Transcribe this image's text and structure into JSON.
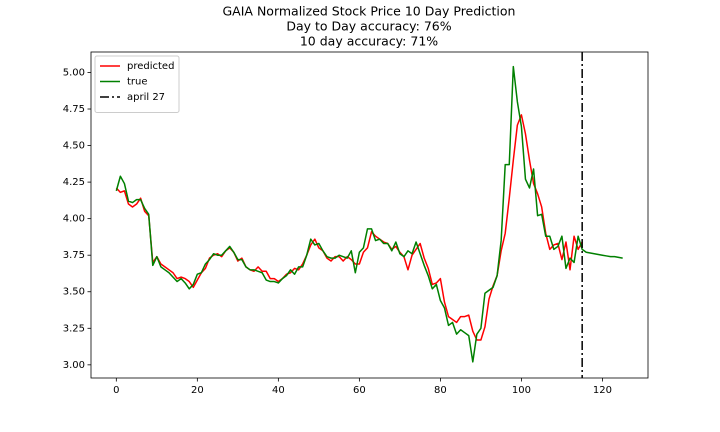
{
  "chart_data": {
    "type": "line",
    "title": [
      "GAIA Normalized Stock Price 10 Day Prediction",
      "Day to Day accuracy: 76%",
      "10 day accuracy: 71%"
    ],
    "x": [
      0,
      1,
      2,
      3,
      4,
      5,
      6,
      7,
      8,
      9,
      10,
      11,
      12,
      13,
      14,
      15,
      16,
      17,
      18,
      19,
      20,
      21,
      22,
      23,
      24,
      25,
      26,
      27,
      28,
      29,
      30,
      31,
      32,
      33,
      34,
      35,
      36,
      37,
      38,
      39,
      40,
      41,
      42,
      43,
      44,
      45,
      46,
      47,
      48,
      49,
      50,
      51,
      52,
      53,
      54,
      55,
      56,
      57,
      58,
      59,
      60,
      61,
      62,
      63,
      64,
      65,
      66,
      67,
      68,
      69,
      70,
      71,
      72,
      73,
      74,
      75,
      76,
      77,
      78,
      79,
      80,
      81,
      82,
      83,
      84,
      85,
      86,
      87,
      88,
      89,
      90,
      91,
      92,
      93,
      94,
      95,
      96,
      97,
      98,
      99,
      100,
      101,
      102,
      103,
      104,
      105,
      106,
      107,
      108,
      109,
      110,
      111,
      112,
      113,
      114,
      115,
      116,
      117,
      118,
      119,
      120,
      121,
      122,
      123,
      124,
      125
    ],
    "series": [
      {
        "name": "predicted",
        "color": "#ff0000",
        "values": [
          4.21,
          4.18,
          4.19,
          4.1,
          4.08,
          4.1,
          4.14,
          4.05,
          4.02,
          3.7,
          3.74,
          3.69,
          3.67,
          3.65,
          3.63,
          3.59,
          3.6,
          3.59,
          3.57,
          3.53,
          3.58,
          3.63,
          3.66,
          3.73,
          3.75,
          3.76,
          3.74,
          3.78,
          3.8,
          3.77,
          3.71,
          3.73,
          3.67,
          3.65,
          3.64,
          3.67,
          3.64,
          3.64,
          3.59,
          3.59,
          3.57,
          3.59,
          3.62,
          3.63,
          3.66,
          3.65,
          3.69,
          3.75,
          3.82,
          3.86,
          3.8,
          3.78,
          3.73,
          3.71,
          3.74,
          3.74,
          3.71,
          3.74,
          3.72,
          3.69,
          3.69,
          3.77,
          3.8,
          3.91,
          3.88,
          3.86,
          3.84,
          3.83,
          3.79,
          3.81,
          3.77,
          3.74,
          3.65,
          3.75,
          3.79,
          3.83,
          3.73,
          3.66,
          3.55,
          3.56,
          3.59,
          3.43,
          3.33,
          3.31,
          3.29,
          3.33,
          3.33,
          3.34,
          3.23,
          3.17,
          3.17,
          3.26,
          3.45,
          3.54,
          3.61,
          3.78,
          3.9,
          4.14,
          4.4,
          4.64,
          4.71,
          4.58,
          4.4,
          4.24,
          4.17,
          4.08,
          3.9,
          3.79,
          3.82,
          3.83,
          3.72,
          3.84,
          3.65,
          3.88,
          3.79,
          3.84,
          null,
          null,
          null,
          null,
          null,
          null,
          null,
          null,
          null,
          null
        ]
      },
      {
        "name": "true",
        "color": "#008000",
        "values": [
          4.19,
          4.29,
          4.24,
          4.12,
          4.11,
          4.13,
          4.13,
          4.07,
          4.03,
          3.68,
          3.74,
          3.67,
          3.65,
          3.63,
          3.6,
          3.57,
          3.59,
          3.56,
          3.52,
          3.55,
          3.62,
          3.63,
          3.69,
          3.72,
          3.76,
          3.75,
          3.75,
          3.78,
          3.81,
          3.77,
          3.72,
          3.72,
          3.67,
          3.65,
          3.65,
          3.64,
          3.63,
          3.58,
          3.57,
          3.57,
          3.56,
          3.59,
          3.61,
          3.65,
          3.62,
          3.67,
          3.67,
          3.75,
          3.86,
          3.82,
          3.83,
          3.78,
          3.74,
          3.73,
          3.73,
          3.75,
          3.74,
          3.73,
          3.78,
          3.63,
          3.77,
          3.8,
          3.93,
          3.93,
          3.85,
          3.86,
          3.83,
          3.83,
          3.78,
          3.84,
          3.76,
          3.74,
          3.78,
          3.76,
          3.84,
          3.76,
          3.68,
          3.61,
          3.52,
          3.55,
          3.44,
          3.39,
          3.27,
          3.29,
          3.21,
          3.24,
          3.22,
          3.2,
          3.02,
          3.21,
          3.25,
          3.49,
          3.51,
          3.53,
          3.61,
          3.85,
          4.37,
          4.37,
          5.04,
          4.8,
          4.63,
          4.27,
          4.21,
          4.34,
          4.02,
          4.03,
          3.88,
          3.88,
          3.79,
          3.81,
          3.88,
          3.66,
          3.73,
          3.7,
          3.88,
          3.79,
          3.77,
          3.765,
          3.76,
          3.755,
          3.75,
          3.745,
          3.74,
          3.74,
          3.735,
          3.73
        ]
      }
    ],
    "vline": {
      "x": 115,
      "name": "april 27",
      "color": "#000000"
    },
    "xlim": [
      -6.25,
      131.25
    ],
    "ylim": [
      2.91,
      5.14
    ],
    "xticks": [
      0,
      20,
      40,
      60,
      80,
      100,
      120
    ],
    "yticks": [
      {
        "value": 3,
        "label": "3.00"
      },
      3.25,
      {
        "value": 3.5,
        "label": "3.50"
      },
      3.75,
      {
        "value": 4,
        "label": "4.00"
      },
      4.25,
      {
        "value": 4.5,
        "label": "4.50"
      },
      4.75,
      {
        "value": 5,
        "label": "5.00"
      }
    ],
    "legend": "upper left",
    "grid": false
  }
}
